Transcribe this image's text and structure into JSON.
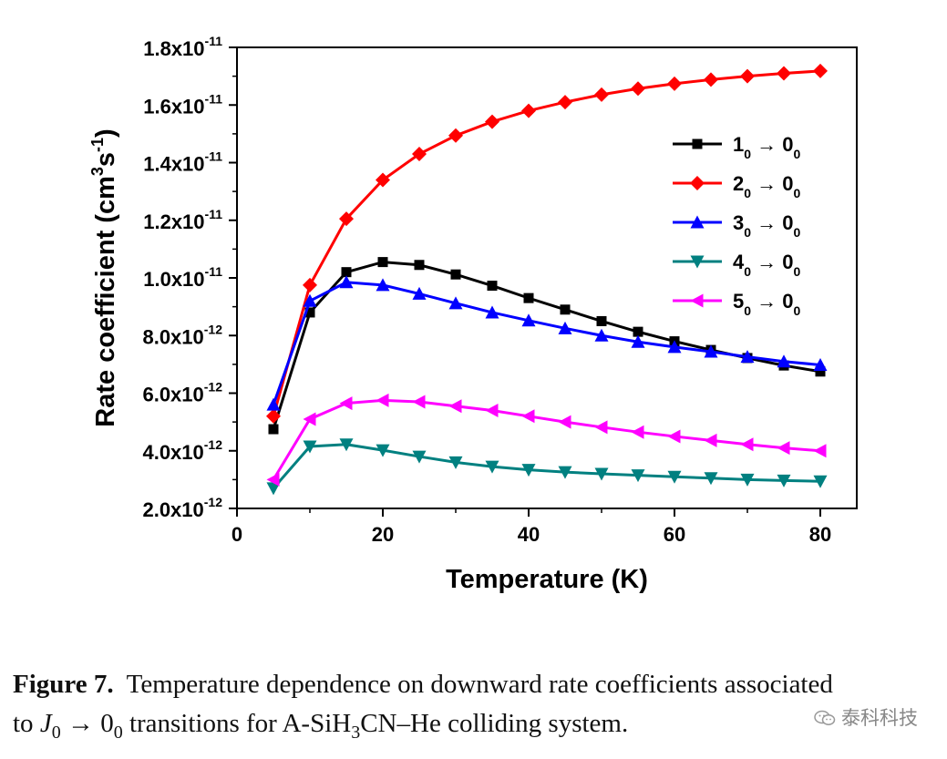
{
  "chart_data": {
    "type": "line",
    "xlabel": "Temperature (K)",
    "ylabel": {
      "main": "Rate coefficient (cm",
      "sup1": "3",
      "mid": "s",
      "sup2": "-1",
      "end": ")"
    },
    "xlim": [
      0,
      85
    ],
    "ylim": [
      2e-12,
      1.8e-11
    ],
    "x_ticks": [
      0,
      20,
      40,
      60,
      80
    ],
    "y_ticks": [
      {
        "value": 2e-12,
        "mant": "2.0x10",
        "exp": "-12"
      },
      {
        "value": 4e-12,
        "mant": "4.0x10",
        "exp": "-12"
      },
      {
        "value": 6e-12,
        "mant": "6.0x10",
        "exp": "-12"
      },
      {
        "value": 8e-12,
        "mant": "8.0x10",
        "exp": "-12"
      },
      {
        "value": 1e-11,
        "mant": "1.0x10",
        "exp": "-11"
      },
      {
        "value": 1.2e-11,
        "mant": "1.2x10",
        "exp": "-11"
      },
      {
        "value": 1.4e-11,
        "mant": "1.4x10",
        "exp": "-11"
      },
      {
        "value": 1.6e-11,
        "mant": "1.6x10",
        "exp": "-11"
      },
      {
        "value": 1.8e-11,
        "mant": "1.8x10",
        "exp": "-11"
      }
    ],
    "legend_position": "top-right",
    "x": [
      5,
      10,
      15,
      20,
      25,
      30,
      35,
      40,
      45,
      50,
      55,
      60,
      65,
      70,
      75,
      80
    ],
    "series": [
      {
        "name": {
          "a": "1",
          "b": "0",
          "c": "0",
          "d": "0"
        },
        "color": "#000000",
        "marker": "square",
        "values": [
          4.75e-12,
          8.8e-12,
          1.02e-11,
          1.055e-11,
          1.045e-11,
          1.012e-11,
          9.73e-12,
          9.3e-12,
          8.9e-12,
          8.5e-12,
          8.13e-12,
          7.8e-12,
          7.5e-12,
          7.22e-12,
          6.96e-12,
          6.75e-12
        ]
      },
      {
        "name": {
          "a": "2",
          "b": "0",
          "c": "0",
          "d": "0"
        },
        "color": "#ff0000",
        "marker": "diamond",
        "values": [
          5.2e-12,
          9.75e-12,
          1.205e-11,
          1.34e-11,
          1.43e-11,
          1.494e-11,
          1.542e-11,
          1.58e-11,
          1.61e-11,
          1.636e-11,
          1.657e-11,
          1.674e-11,
          1.688e-11,
          1.7e-11,
          1.71e-11,
          1.718e-11
        ]
      },
      {
        "name": {
          "a": "3",
          "b": "0",
          "c": "0",
          "d": "0"
        },
        "color": "#0000ff",
        "marker": "triangle-up",
        "values": [
          5.6e-12,
          9.2e-12,
          9.85e-12,
          9.75e-12,
          9.45e-12,
          9.12e-12,
          8.8e-12,
          8.52e-12,
          8.25e-12,
          8e-12,
          7.78e-12,
          7.6e-12,
          7.44e-12,
          7.26e-12,
          7.1e-12,
          6.98e-12
        ]
      },
      {
        "name": {
          "a": "4",
          "b": "0",
          "c": "0",
          "d": "0"
        },
        "color": "#008080",
        "marker": "triangle-down",
        "values": [
          2.7e-12,
          4.15e-12,
          4.22e-12,
          4.02e-12,
          3.8e-12,
          3.6e-12,
          3.45e-12,
          3.34e-12,
          3.26e-12,
          3.2e-12,
          3.15e-12,
          3.1e-12,
          3.05e-12,
          3e-12,
          2.97e-12,
          2.94e-12
        ]
      },
      {
        "name": {
          "a": "5",
          "b": "0",
          "c": "0",
          "d": "0"
        },
        "color": "#ff00ff",
        "marker": "triangle-left",
        "values": [
          3e-12,
          5.1e-12,
          5.65e-12,
          5.75e-12,
          5.7e-12,
          5.55e-12,
          5.4e-12,
          5.2e-12,
          5e-12,
          4.82e-12,
          4.65e-12,
          4.5e-12,
          4.36e-12,
          4.22e-12,
          4.1e-12,
          4e-12
        ]
      }
    ]
  },
  "caption": {
    "label": "Figure 7.",
    "text_line1": "Temperature dependence on downward rate coefficients associated",
    "text_to": "to ",
    "j": "J",
    "j_sub": "0",
    "arrow": "→",
    "zero": "0",
    "zero_sub": "0",
    "text_mid": " transitions for A-SiH",
    "h_sub": "3",
    "text_end": "CN–He colliding system."
  },
  "watermark": {
    "text": "泰科科技",
    "icon": "wechat-icon"
  }
}
